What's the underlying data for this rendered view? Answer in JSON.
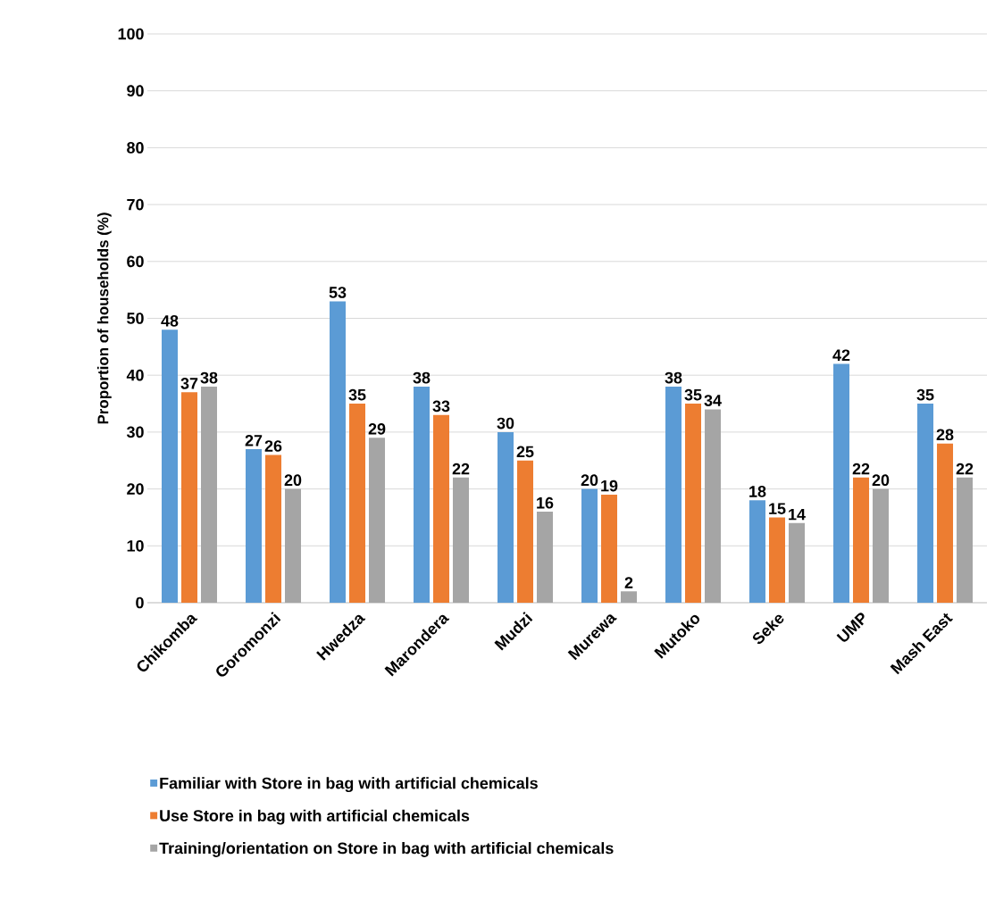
{
  "chart_data": {
    "type": "bar",
    "ylabel": "Proportion of households (%)",
    "categories": [
      "Chikomba",
      "Goromonzi",
      "Hwedza",
      "Marondera",
      "Mudzi",
      "Murewa",
      "Mutoko",
      "Seke",
      "UMP",
      "Mash East"
    ],
    "series": [
      {
        "name": "Familiar with Store in bag with artificial chemicals",
        "color": "#5b9bd5",
        "values": [
          48,
          27,
          53,
          38,
          30,
          20,
          38,
          18,
          42,
          35
        ]
      },
      {
        "name": "Use  Store in bag with artificial chemicals",
        "color": "#ed7d31",
        "values": [
          37,
          26,
          35,
          33,
          25,
          19,
          35,
          15,
          22,
          28
        ]
      },
      {
        "name": "Training/orientation on  Store in bag with artificial chemicals",
        "color": "#a5a5a5",
        "values": [
          38,
          20,
          29,
          22,
          16,
          2,
          34,
          14,
          20,
          22
        ]
      }
    ],
    "ylim": [
      0,
      100
    ],
    "yticks": [
      0,
      10,
      20,
      30,
      40,
      50,
      60,
      70,
      80,
      90,
      100
    ],
    "grid": "y",
    "legend": "bottom",
    "data_labels": true
  }
}
